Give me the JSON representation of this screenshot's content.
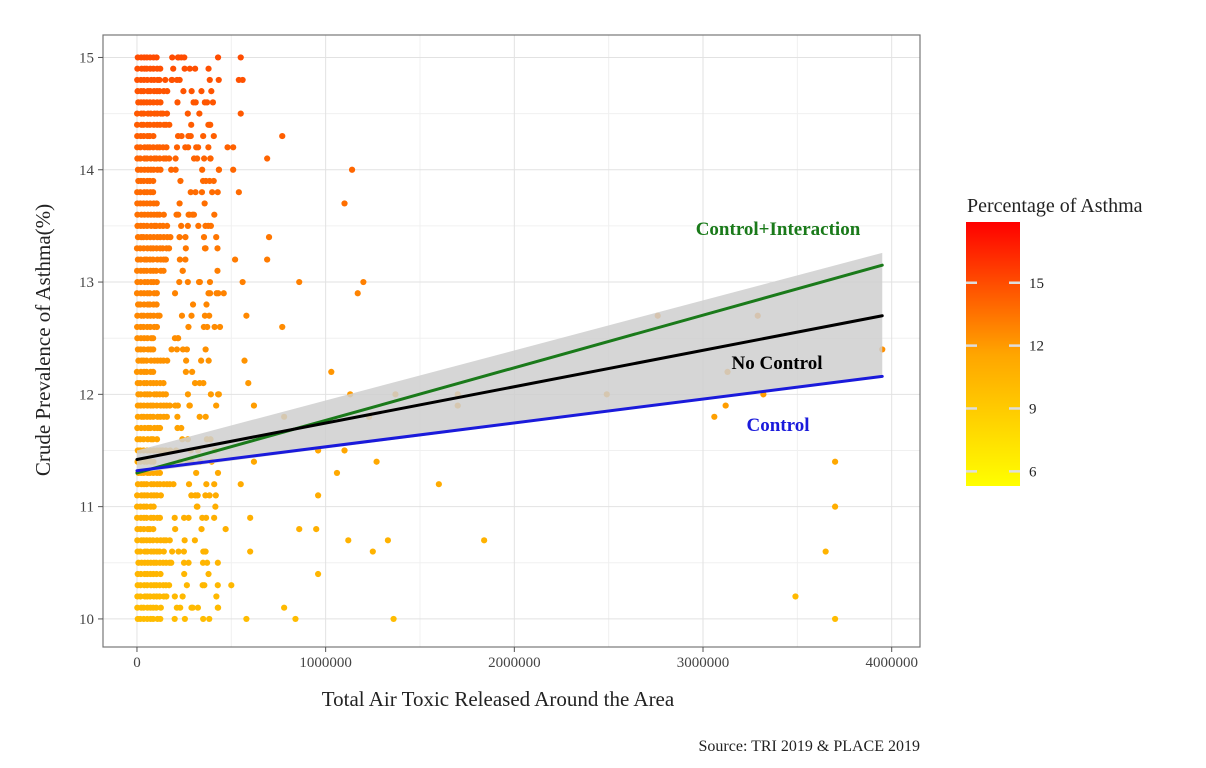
{
  "chart_data": {
    "type": "scatter",
    "title": "",
    "xlabel": "Total Air Toxic Released Around the Area",
    "ylabel": "Crude Prevalence of Asthma(%)",
    "xlim": [
      -180000,
      4150000
    ],
    "ylim": [
      9.75,
      15.2
    ],
    "x_ticks": [
      0,
      1000000,
      2000000,
      3000000,
      4000000
    ],
    "x_tick_labels": [
      "0",
      "1000000",
      "2000000",
      "3000000",
      "4000000"
    ],
    "y_ticks": [
      10,
      11,
      12,
      13,
      14,
      15
    ],
    "y_tick_labels": [
      "10",
      "11",
      "12",
      "13",
      "14",
      "15"
    ],
    "grid": true,
    "points": [
      {
        "x": 150000,
        "y": 14.8
      },
      {
        "x": 220000,
        "y": 15.0
      },
      {
        "x": 280000,
        "y": 14.9
      },
      {
        "x": 550000,
        "y": 15.0
      },
      {
        "x": 540000,
        "y": 14.8
      },
      {
        "x": 560000,
        "y": 14.8
      },
      {
        "x": 300000,
        "y": 14.6
      },
      {
        "x": 550000,
        "y": 14.5
      },
      {
        "x": 480000,
        "y": 14.2
      },
      {
        "x": 510000,
        "y": 14.2
      },
      {
        "x": 770000,
        "y": 14.3
      },
      {
        "x": 690000,
        "y": 14.1
      },
      {
        "x": 1140000,
        "y": 14.0
      },
      {
        "x": 510000,
        "y": 14.0
      },
      {
        "x": 540000,
        "y": 13.8
      },
      {
        "x": 1100000,
        "y": 13.7
      },
      {
        "x": 410000,
        "y": 13.6
      },
      {
        "x": 700000,
        "y": 13.4
      },
      {
        "x": 690000,
        "y": 13.2
      },
      {
        "x": 860000,
        "y": 13.0
      },
      {
        "x": 1200000,
        "y": 13.0
      },
      {
        "x": 1170000,
        "y": 12.9
      },
      {
        "x": 770000,
        "y": 12.6
      },
      {
        "x": 2760000,
        "y": 12.7
      },
      {
        "x": 3290000,
        "y": 12.7
      },
      {
        "x": 3950000,
        "y": 12.4
      },
      {
        "x": 1030000,
        "y": 12.2
      },
      {
        "x": 3130000,
        "y": 12.2
      },
      {
        "x": 1370000,
        "y": 12.0
      },
      {
        "x": 1700000,
        "y": 12.0
      },
      {
        "x": 2490000,
        "y": 12.0
      },
      {
        "x": 1130000,
        "y": 12.0
      },
      {
        "x": 3320000,
        "y": 12.0
      },
      {
        "x": 1700000,
        "y": 11.9
      },
      {
        "x": 3060000,
        "y": 11.8
      },
      {
        "x": 3120000,
        "y": 11.9
      },
      {
        "x": 1230000,
        "y": 11.8
      },
      {
        "x": 780000,
        "y": 11.8
      },
      {
        "x": 1100000,
        "y": 11.5
      },
      {
        "x": 960000,
        "y": 11.5
      },
      {
        "x": 1270000,
        "y": 11.4
      },
      {
        "x": 3700000,
        "y": 11.4
      },
      {
        "x": 1060000,
        "y": 11.3
      },
      {
        "x": 1600000,
        "y": 11.2
      },
      {
        "x": 960000,
        "y": 11.1
      },
      {
        "x": 3700000,
        "y": 11.0
      },
      {
        "x": 860000,
        "y": 10.8
      },
      {
        "x": 950000,
        "y": 10.8
      },
      {
        "x": 1120000,
        "y": 10.7
      },
      {
        "x": 1330000,
        "y": 10.7
      },
      {
        "x": 1840000,
        "y": 10.7
      },
      {
        "x": 1250000,
        "y": 10.6
      },
      {
        "x": 3650000,
        "y": 10.6
      },
      {
        "x": 960000,
        "y": 10.4
      },
      {
        "x": 780000,
        "y": 10.1
      },
      {
        "x": 3490000,
        "y": 10.2
      },
      {
        "x": 840000,
        "y": 10.0
      },
      {
        "x": 1360000,
        "y": 10.0
      },
      {
        "x": 3700000,
        "y": 10.0
      },
      {
        "x": 580000,
        "y": 10.0
      },
      {
        "x": 430000,
        "y": 10.1
      },
      {
        "x": 500000,
        "y": 10.3
      },
      {
        "x": 600000,
        "y": 10.6
      },
      {
        "x": 550000,
        "y": 11.2
      },
      {
        "x": 620000,
        "y": 11.4
      },
      {
        "x": 590000,
        "y": 12.1
      },
      {
        "x": 570000,
        "y": 12.3
      },
      {
        "x": 620000,
        "y": 11.9
      },
      {
        "x": 580000,
        "y": 12.7
      },
      {
        "x": 560000,
        "y": 13.0
      },
      {
        "x": 520000,
        "y": 13.2
      },
      {
        "x": 600000,
        "y": 10.9
      },
      {
        "x": 460000,
        "y": 12.9
      },
      {
        "x": 430000,
        "y": 12.0
      },
      {
        "x": 390000,
        "y": 11.6
      },
      {
        "x": 470000,
        "y": 10.8
      },
      {
        "x": 350000,
        "y": 10.5
      },
      {
        "x": 420000,
        "y": 13.4
      },
      {
        "x": 440000,
        "y": 12.6
      },
      {
        "x": 380000,
        "y": 12.3
      }
    ],
    "point_color_scale": {
      "title": "Percentage of Asthma",
      "ticks": [
        6,
        9,
        12,
        15
      ],
      "tick_labels": [
        "6",
        "9",
        "12",
        "15"
      ],
      "range": [
        5.3,
        17.9
      ],
      "colors": [
        "#ffff00",
        "#ffa500",
        "#ff0000"
      ]
    },
    "series": [
      {
        "name": "Control+Interaction",
        "type": "line",
        "color": "#1a7a1a",
        "x": [
          0,
          3950000
        ],
        "y": [
          11.3,
          13.15
        ]
      },
      {
        "name": "No Control",
        "type": "line",
        "color": "#000000",
        "x": [
          0,
          3950000
        ],
        "y": [
          11.42,
          12.7
        ]
      },
      {
        "name": "Control",
        "type": "line",
        "color": "#1a1adb",
        "x": [
          0,
          3950000
        ],
        "y": [
          11.32,
          12.16
        ]
      }
    ],
    "confidence_band": {
      "color": "#cfcfcf",
      "x": [
        0,
        3950000
      ],
      "lower": [
        11.3,
        12.16
      ],
      "upper": [
        11.5,
        13.26
      ]
    },
    "caption": "Source: TRI 2019 & PLACE 2019"
  }
}
